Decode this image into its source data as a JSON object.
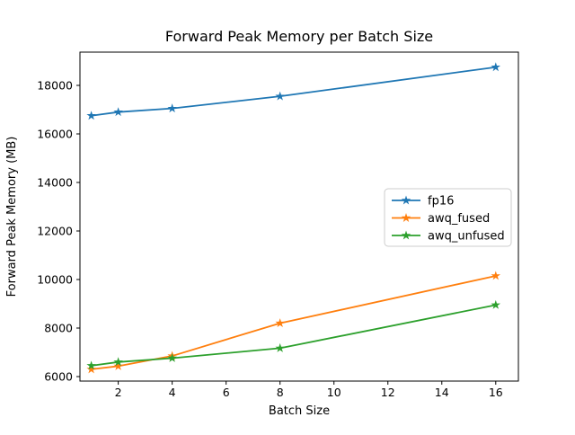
{
  "window": {
    "background": "#ffffff"
  },
  "chart_data": {
    "type": "line",
    "title": "Forward Peak Memory per Batch Size",
    "xlabel": "Batch Size",
    "ylabel": "Forward Peak Memory (MB)",
    "x": [
      1,
      2,
      4,
      8,
      16
    ],
    "series": [
      {
        "name": "fp16",
        "color": "#1f77b4",
        "values": [
          16750,
          16900,
          17050,
          17550,
          18750
        ]
      },
      {
        "name": "awq_fused",
        "color": "#ff7f0e",
        "values": [
          6300,
          6430,
          6850,
          8200,
          10150
        ]
      },
      {
        "name": "awq_unfused",
        "color": "#2ca02c",
        "values": [
          6450,
          6600,
          6760,
          7170,
          8950
        ]
      }
    ],
    "marker": "star",
    "xticks": [
      2,
      4,
      6,
      8,
      10,
      12,
      14,
      16
    ],
    "yticks": [
      6000,
      8000,
      10000,
      12000,
      14000,
      16000,
      18000
    ],
    "xlim": [
      0.58,
      16.84
    ],
    "ylim": [
      5815,
      19370
    ],
    "grid": false,
    "legend_position": "center right",
    "axis_color": "#000000",
    "legend_border_color": "#cccccc"
  }
}
